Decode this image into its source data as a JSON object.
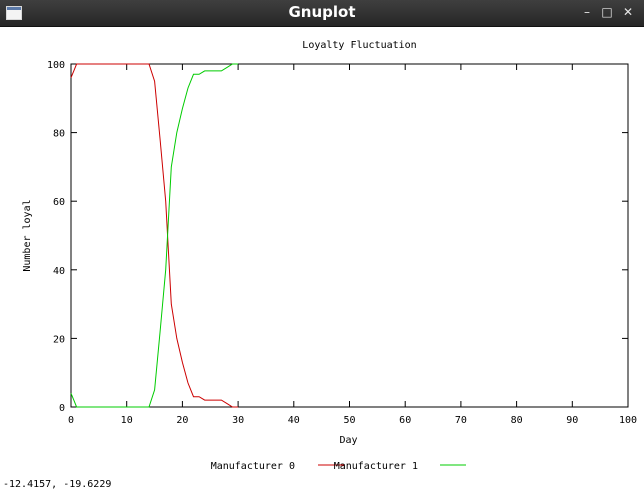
{
  "window": {
    "title": "Gnuplot",
    "icon": "window-icon",
    "controls": [
      "minimize-icon",
      "maximize-icon",
      "close-icon"
    ]
  },
  "status": {
    "coordinates": "-12.4157, -19.6229"
  },
  "chart_data": {
    "type": "line",
    "title": "Loyalty Fluctuation",
    "xlabel": "Day",
    "ylabel": "Number loyal",
    "xlim": [
      0,
      100
    ],
    "ylim": [
      0,
      100
    ],
    "xticks": [
      0,
      10,
      20,
      30,
      40,
      50,
      60,
      70,
      80,
      90,
      100
    ],
    "yticks": [
      0,
      20,
      40,
      60,
      80,
      100
    ],
    "grid": false,
    "legend_position": "bottom-center",
    "series": [
      {
        "name": "Manufacturer 0",
        "color": "#cc0000",
        "x": [
          0,
          0.5,
          1,
          14,
          15,
          16,
          17,
          18,
          19,
          20,
          21,
          22,
          23,
          24,
          25,
          27,
          28,
          29,
          30
        ],
        "y": [
          96,
          98,
          100,
          100,
          95,
          78,
          60,
          30,
          20,
          13,
          7,
          3,
          3,
          2,
          2,
          2,
          1,
          0,
          0
        ]
      },
      {
        "name": "Manufacturer 1",
        "color": "#00cc00",
        "x": [
          0,
          0.5,
          1,
          14,
          15,
          16,
          17,
          18,
          19,
          20,
          21,
          22,
          23,
          24,
          25,
          27,
          28,
          29,
          30
        ],
        "y": [
          4,
          2,
          0,
          0,
          5,
          22,
          40,
          70,
          80,
          87,
          93,
          97,
          97,
          98,
          98,
          98,
          99,
          100,
          100
        ]
      }
    ]
  }
}
